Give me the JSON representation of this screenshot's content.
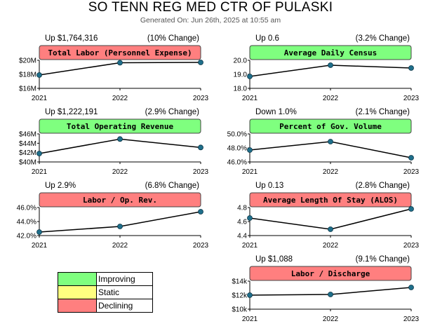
{
  "header": {
    "title": "SO TENN REG MED CTR OF PULASKI",
    "generated": "Generated On: Jun 26th, 2025 at 10:55 am"
  },
  "colors": {
    "improving": "#7fff7f",
    "static": "#ffff80",
    "declining": "#ff7f7f",
    "line": "#000000",
    "point": "#1f6f8b"
  },
  "legend": [
    {
      "label": "Improving",
      "status": "improving"
    },
    {
      "label": "Static",
      "status": "static"
    },
    {
      "label": "Declining",
      "status": "declining"
    }
  ],
  "chart_data": [
    {
      "type": "line",
      "title": "Total Labor (Personnel Expense)",
      "status": "declining",
      "change": "Up $1,764,316",
      "pct": "(10% Change)",
      "x": [
        "2021",
        "2022",
        "2023"
      ],
      "values": [
        17900000,
        19650000,
        19700000
      ],
      "ylim": [
        16000000,
        20000000
      ],
      "yticks": [
        {
          "v": 20000000,
          "label": "$20M"
        },
        {
          "v": 18000000,
          "label": "$18M"
        },
        {
          "v": 16000000,
          "label": "$16M"
        }
      ]
    },
    {
      "type": "line",
      "title": "Average Daily Census",
      "status": "improving",
      "change": "Up 0.6",
      "pct": "(3.2% Change)",
      "x": [
        "2021",
        "2022",
        "2023"
      ],
      "values": [
        18.85,
        19.65,
        19.45
      ],
      "ylim": [
        18.0,
        20.0
      ],
      "yticks": [
        {
          "v": 20.0,
          "label": "20.0"
        },
        {
          "v": 19.0,
          "label": "19.0"
        },
        {
          "v": 18.0,
          "label": "18.0"
        }
      ]
    },
    {
      "type": "line",
      "title": "Total Operating Revenue",
      "status": "improving",
      "change": "Up $1,222,191",
      "pct": "(2.9% Change)",
      "x": [
        "2021",
        "2022",
        "2023"
      ],
      "values": [
        41800000,
        44900000,
        43100000
      ],
      "ylim": [
        40000000,
        46000000
      ],
      "yticks": [
        {
          "v": 46000000,
          "label": "$46M"
        },
        {
          "v": 44000000,
          "label": "$44M"
        },
        {
          "v": 42000000,
          "label": "$42M"
        },
        {
          "v": 40000000,
          "label": "$40M"
        }
      ]
    },
    {
      "type": "line",
      "title": "Percent of Gov. Volume",
      "status": "improving",
      "change": "Down 1.0%",
      "pct": "(2.1% Change)",
      "x": [
        "2021",
        "2022",
        "2023"
      ],
      "values": [
        47.7,
        48.9,
        46.6
      ],
      "ylim": [
        46.0,
        50.0
      ],
      "yticks": [
        {
          "v": 50.0,
          "label": "50.0%"
        },
        {
          "v": 48.0,
          "label": "48.0%"
        },
        {
          "v": 46.0,
          "label": "46.0%"
        }
      ]
    },
    {
      "type": "line",
      "title": "Labor / Op. Rev.",
      "status": "declining",
      "change": "Up 2.9%",
      "pct": "(6.8% Change)",
      "x": [
        "2021",
        "2022",
        "2023"
      ],
      "values": [
        42.5,
        43.3,
        45.4
      ],
      "ylim": [
        42.0,
        46.0
      ],
      "yticks": [
        {
          "v": 46.0,
          "label": "46.0%"
        },
        {
          "v": 44.0,
          "label": "44.0%"
        },
        {
          "v": 42.0,
          "label": "42.0%"
        }
      ]
    },
    {
      "type": "line",
      "title": "Average Length Of Stay (ALOS)",
      "status": "declining",
      "change": "Up 0.13",
      "pct": "(2.8% Change)",
      "x": [
        "2021",
        "2022",
        "2023"
      ],
      "values": [
        4.65,
        4.49,
        4.78
      ],
      "ylim": [
        4.4,
        4.8
      ],
      "yticks": [
        {
          "v": 4.8,
          "label": "4.8"
        },
        {
          "v": 4.6,
          "label": "4.6"
        },
        {
          "v": 4.4,
          "label": "4.4"
        }
      ]
    },
    {
      "type": "line",
      "title": "Labor / Discharge",
      "status": "declining",
      "change": "Up $1,088",
      "pct": "(9.1% Change)",
      "x": [
        "2021",
        "2022",
        "2023"
      ],
      "values": [
        12000,
        12100,
        13100
      ],
      "ylim": [
        10000,
        14000
      ],
      "yticks": [
        {
          "v": 14000,
          "label": "$14k"
        },
        {
          "v": 12000,
          "label": "$12k"
        },
        {
          "v": 10000,
          "label": "$10k"
        }
      ]
    }
  ]
}
